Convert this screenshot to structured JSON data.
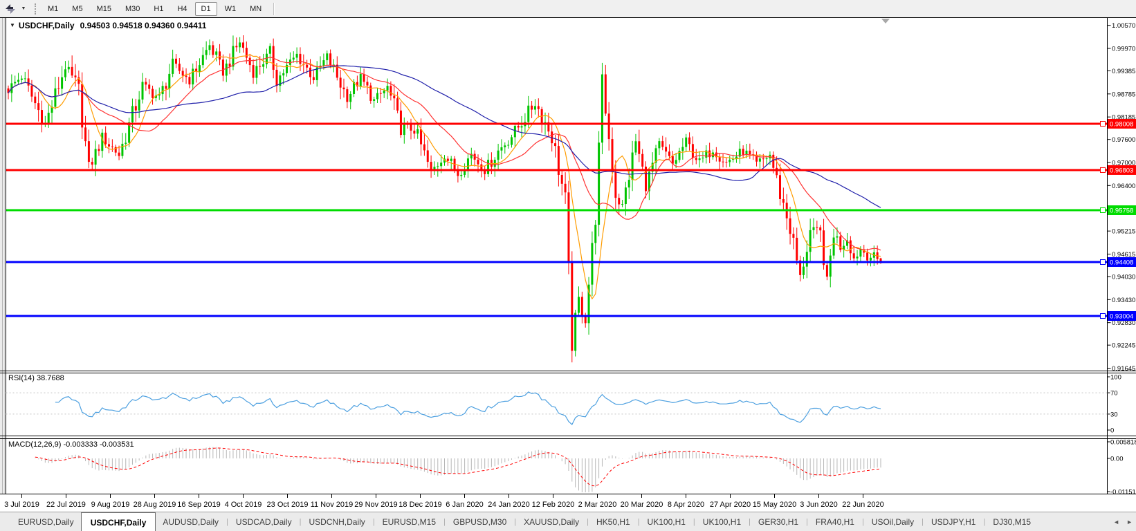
{
  "toolbar": {
    "timeframes": [
      "M1",
      "M5",
      "M15",
      "M30",
      "H1",
      "H4",
      "D1",
      "W1",
      "MN"
    ],
    "selected_timeframe": "D1"
  },
  "icons": {
    "caret": "▼",
    "collapse": "▼",
    "scroll_marker": "▼",
    "tab_prev": "◄",
    "tab_next": "►"
  },
  "chart": {
    "title": "USDCHF,Daily",
    "ohlc": "0.94503 0.94518 0.94360 0.94411"
  },
  "price_axis": {
    "ticks": [
      "1.00570",
      "0.99970",
      "0.99385",
      "0.98785",
      "0.98185",
      "0.97600",
      "0.97000",
      "0.96400",
      "0.95215",
      "0.94615",
      "0.94030",
      "0.93430",
      "0.92830",
      "0.92245",
      "0.91645"
    ]
  },
  "hlines": [
    {
      "label": "0.98008",
      "price": 0.98008,
      "color": "#FF0000"
    },
    {
      "label": "0.96803",
      "price": 0.96803,
      "color": "#FF0000"
    },
    {
      "label": "0.95758",
      "price": 0.95758,
      "color": "#00DC00"
    },
    {
      "label": "0.94408",
      "price": 0.94408,
      "color": "#0000FF"
    },
    {
      "label": "0.93004",
      "price": 0.93004,
      "color": "#0000FF"
    }
  ],
  "indicators": {
    "rsi": {
      "label": "RSI(14) 38.7688",
      "axis_labels": [
        "100",
        "70",
        "30",
        "0"
      ],
      "levels": [
        70,
        30
      ],
      "color": "#4DA0E0"
    },
    "macd": {
      "label": "MACD(12,26,9) -0.003333 -0.003531",
      "axis_labels": [
        "0.005818",
        "0.00",
        "-0.01151"
      ],
      "hist_color": "#B6B6B6",
      "signal_color": "#FF0000"
    }
  },
  "time_axis": {
    "labels": [
      "3 Jul 2019",
      "22 Jul 2019",
      "9 Aug 2019",
      "28 Aug 2019",
      "16 Sep 2019",
      "4 Oct 2019",
      "23 Oct 2019",
      "11 Nov 2019",
      "29 Nov 2019",
      "18 Dec 2019",
      "6 Jan 2020",
      "24 Jan 2020",
      "12 Feb 2020",
      "2 Mar 2020",
      "20 Mar 2020",
      "8 Apr 2020",
      "27 Apr 2020",
      "15 May 2020",
      "3 Jun 2020",
      "22 Jun 2020"
    ]
  },
  "tabs": {
    "active": "USDCHF,Daily",
    "items": [
      "EURUSD,Daily",
      "USDCHF,Daily",
      "AUDUSD,Daily",
      "USDCAD,Daily",
      "USDCNH,Daily",
      "EURUSD,M15",
      "GBPUSD,M30",
      "XAUUSD,Daily",
      "HK50,H1",
      "UK100,H1",
      "UK100,H1",
      "GER30,H1",
      "FRA40,H1",
      "USOil,Daily",
      "USDJPY,H1",
      "DJ30,M15"
    ]
  },
  "chart_data": {
    "type": "candlestick",
    "symbol": "USDCHF",
    "timeframe": "Daily",
    "title": "USDCHF,Daily",
    "current_ohlc": {
      "open": 0.94503,
      "high": 0.94518,
      "low": 0.9436,
      "close": 0.94411
    },
    "y_axis": {
      "min": 0.916,
      "max": 1.0076,
      "ticks": [
        1.0057,
        0.9997,
        0.99385,
        0.98785,
        0.98185,
        0.976,
        0.97,
        0.964,
        0.95215,
        0.94615,
        0.9403,
        0.9343,
        0.9283,
        0.92245,
        0.91645
      ]
    },
    "x_axis": {
      "labels": [
        "3 Jul 2019",
        "22 Jul 2019",
        "9 Aug 2019",
        "28 Aug 2019",
        "16 Sep 2019",
        "4 Oct 2019",
        "23 Oct 2019",
        "11 Nov 2019",
        "29 Nov 2019",
        "18 Dec 2019",
        "6 Jan 2020",
        "24 Jan 2020",
        "12 Feb 2020",
        "2 Mar 2020",
        "20 Mar 2020",
        "8 Apr 2020",
        "27 Apr 2020",
        "15 May 2020",
        "3 Jun 2020",
        "22 Jun 2020"
      ]
    },
    "bars": 261,
    "bull_color": "#00C400",
    "bear_color": "#FF0000",
    "moving_averages": [
      {
        "name": "fast",
        "period": 8,
        "color": "#FF9C00"
      },
      {
        "name": "mid",
        "period": 21,
        "color": "#FF3232"
      },
      {
        "name": "slow",
        "period": 55,
        "color": "#2020AA"
      }
    ],
    "horizontal_lines": [
      0.98008,
      0.96803,
      0.95758,
      0.94408,
      0.93004
    ],
    "price_keypoints": [
      [
        0,
        0.989
      ],
      [
        4,
        0.9925
      ],
      [
        11,
        0.98
      ],
      [
        17,
        0.995
      ],
      [
        21,
        0.9885
      ],
      [
        24,
        0.968
      ],
      [
        28,
        0.9765
      ],
      [
        33,
        0.972
      ],
      [
        40,
        0.99
      ],
      [
        45,
        0.9868
      ],
      [
        49,
        0.9955
      ],
      [
        54,
        0.9915
      ],
      [
        60,
        1.0005
      ],
      [
        64,
        0.9935
      ],
      [
        69,
        1.0015
      ],
      [
        73,
        0.9935
      ],
      [
        78,
        0.9985
      ],
      [
        80,
        0.9915
      ],
      [
        86,
        0.998
      ],
      [
        91,
        0.992
      ],
      [
        95,
        0.9975
      ],
      [
        101,
        0.987
      ],
      [
        105,
        0.992
      ],
      [
        109,
        0.986
      ],
      [
        113,
        0.9895
      ],
      [
        117,
        0.979
      ],
      [
        121,
        0.9788
      ],
      [
        126,
        0.9675
      ],
      [
        130,
        0.972
      ],
      [
        134,
        0.967
      ],
      [
        138,
        0.9722
      ],
      [
        142,
        0.968
      ],
      [
        146,
        0.973
      ],
      [
        151,
        0.978
      ],
      [
        157,
        0.9855
      ],
      [
        162,
        0.977
      ],
      [
        166,
        0.96
      ],
      [
        168,
        0.923
      ],
      [
        170,
        0.934
      ],
      [
        172,
        0.93
      ],
      [
        175,
        0.956
      ],
      [
        177,
        0.9905
      ],
      [
        181,
        0.962
      ],
      [
        183,
        0.9583
      ],
      [
        187,
        0.9755
      ],
      [
        190,
        0.964
      ],
      [
        194,
        0.9745
      ],
      [
        198,
        0.9695
      ],
      [
        202,
        0.9755
      ],
      [
        206,
        0.97
      ],
      [
        210,
        0.9735
      ],
      [
        214,
        0.97
      ],
      [
        219,
        0.973
      ],
      [
        223,
        0.9695
      ],
      [
        227,
        0.972
      ],
      [
        230,
        0.962
      ],
      [
        233,
        0.953
      ],
      [
        236,
        0.94
      ],
      [
        239,
        0.952
      ],
      [
        242,
        0.951
      ],
      [
        244,
        0.939
      ],
      [
        246,
        0.952
      ],
      [
        248,
        0.948
      ],
      [
        250,
        0.9505
      ],
      [
        252,
        0.945
      ],
      [
        254,
        0.9475
      ],
      [
        256,
        0.946
      ],
      [
        258,
        0.9452
      ],
      [
        260,
        0.94411
      ]
    ],
    "rsi": {
      "period": 14,
      "last": 38.7688,
      "levels": [
        70,
        30
      ]
    },
    "macd": {
      "fast": 12,
      "slow": 26,
      "signal": 9,
      "last_macd": -0.003333,
      "last_signal": -0.003531,
      "axis_max": 0.005818,
      "axis_min": -0.01151
    }
  }
}
